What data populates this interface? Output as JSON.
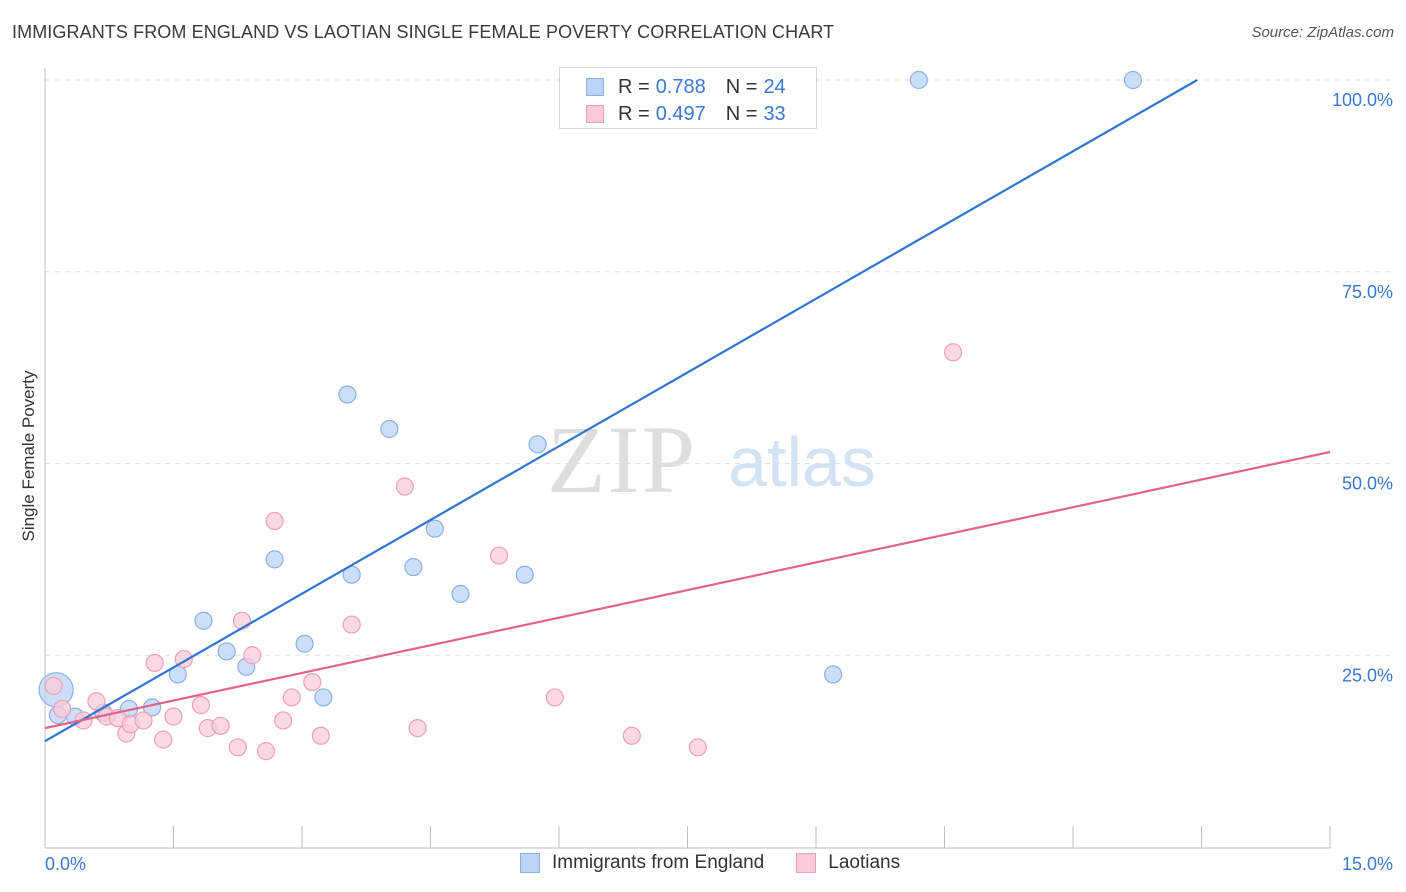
{
  "header": {
    "title": "IMMIGRANTS FROM ENGLAND VS LAOTIAN SINGLE FEMALE POVERTY CORRELATION CHART",
    "source": "Source: ZipAtlas.com"
  },
  "watermark": {
    "zip": "ZIP",
    "atlas": "atlas"
  },
  "legend": {
    "r_label": "R =",
    "n_label": "N =",
    "rows": [
      {
        "r": "0.788",
        "n": "24"
      },
      {
        "r": "0.497",
        "n": "33"
      }
    ]
  },
  "colors": {
    "blue_fill": "#bcd4f6",
    "blue_stroke": "#8ab0e6",
    "blue_line": "#2f74d0",
    "pink_fill": "#f9cbd8",
    "pink_stroke": "#ee9fb6",
    "pink_line": "#e3638a",
    "tick_label": "#3a78d6",
    "grid": "#e0e0e0"
  },
  "chart_data": {
    "type": "scatter",
    "title": "IMMIGRANTS FROM ENGLAND VS LAOTIAN SINGLE FEMALE POVERTY CORRELATION CHART",
    "xlabel": "",
    "ylabel": "Single Female Poverty",
    "xlim": [
      0,
      15
    ],
    "ylim": [
      0,
      102
    ],
    "x_tick_labels": [
      {
        "value": 0,
        "label": "0.0%"
      },
      {
        "value": 15,
        "label": "15.0%"
      }
    ],
    "y_tick_labels": [
      {
        "value": 25,
        "label": "25.0%"
      },
      {
        "value": 50,
        "label": "50.0%"
      },
      {
        "value": 75,
        "label": "75.0%"
      },
      {
        "value": 100,
        "label": "100.0%"
      }
    ],
    "x_minor_ticks": [
      0,
      1.5,
      3,
      4.5,
      6,
      7.5,
      9,
      10.5,
      12,
      13.5,
      15
    ],
    "grid": true,
    "legend_position": "top-center",
    "series": [
      {
        "name": "Immigrants from England",
        "color": "#bcd4f6",
        "r": 0.788,
        "n": 24,
        "trend": {
          "x": [
            0,
            13.45
          ],
          "y": [
            13.8,
            100
          ]
        },
        "points": [
          {
            "x": 0.13,
            "y": 20.5,
            "big": true
          },
          {
            "x": 0.35,
            "y": 17.0
          },
          {
            "x": 0.68,
            "y": 17.5
          },
          {
            "x": 0.98,
            "y": 18.0
          },
          {
            "x": 1.25,
            "y": 18.2
          },
          {
            "x": 1.55,
            "y": 22.5
          },
          {
            "x": 1.85,
            "y": 29.5
          },
          {
            "x": 2.12,
            "y": 25.5
          },
          {
            "x": 2.35,
            "y": 23.5
          },
          {
            "x": 2.68,
            "y": 37.5
          },
          {
            "x": 3.03,
            "y": 26.5
          },
          {
            "x": 3.25,
            "y": 19.5
          },
          {
            "x": 3.53,
            "y": 59.0
          },
          {
            "x": 3.58,
            "y": 35.5
          },
          {
            "x": 4.02,
            "y": 54.5
          },
          {
            "x": 4.3,
            "y": 36.5
          },
          {
            "x": 4.55,
            "y": 41.5
          },
          {
            "x": 4.85,
            "y": 33.0
          },
          {
            "x": 5.6,
            "y": 35.5
          },
          {
            "x": 5.75,
            "y": 52.5
          },
          {
            "x": 9.2,
            "y": 22.5
          },
          {
            "x": 10.2,
            "y": 100.0
          },
          {
            "x": 12.7,
            "y": 100.0
          },
          {
            "x": 0.15,
            "y": 17.2
          }
        ]
      },
      {
        "name": "Laotians",
        "color": "#f9cbd8",
        "r": 0.497,
        "n": 33,
        "trend": {
          "x": [
            0,
            15
          ],
          "y": [
            15.5,
            51.5
          ]
        },
        "points": [
          {
            "x": 0.1,
            "y": 21.0
          },
          {
            "x": 0.2,
            "y": 18.0
          },
          {
            "x": 0.45,
            "y": 16.5
          },
          {
            "x": 0.6,
            "y": 19.0
          },
          {
            "x": 0.72,
            "y": 17.0
          },
          {
            "x": 0.85,
            "y": 16.8
          },
          {
            "x": 0.95,
            "y": 14.8
          },
          {
            "x": 1.0,
            "y": 16.0
          },
          {
            "x": 1.15,
            "y": 16.5
          },
          {
            "x": 1.28,
            "y": 24.0
          },
          {
            "x": 1.38,
            "y": 14.0
          },
          {
            "x": 1.5,
            "y": 17.0
          },
          {
            "x": 1.62,
            "y": 24.5
          },
          {
            "x": 1.82,
            "y": 18.5
          },
          {
            "x": 1.9,
            "y": 15.5
          },
          {
            "x": 2.05,
            "y": 15.8
          },
          {
            "x": 2.25,
            "y": 13.0
          },
          {
            "x": 2.3,
            "y": 29.5
          },
          {
            "x": 2.42,
            "y": 25.0
          },
          {
            "x": 2.58,
            "y": 12.5
          },
          {
            "x": 2.68,
            "y": 42.5
          },
          {
            "x": 2.78,
            "y": 16.5
          },
          {
            "x": 2.88,
            "y": 19.5
          },
          {
            "x": 3.12,
            "y": 21.5
          },
          {
            "x": 3.22,
            "y": 14.5
          },
          {
            "x": 3.58,
            "y": 29.0
          },
          {
            "x": 4.2,
            "y": 47.0
          },
          {
            "x": 4.35,
            "y": 15.5
          },
          {
            "x": 5.3,
            "y": 38.0
          },
          {
            "x": 5.95,
            "y": 19.5
          },
          {
            "x": 6.85,
            "y": 14.5
          },
          {
            "x": 7.62,
            "y": 13.0
          },
          {
            "x": 10.6,
            "y": 64.5
          }
        ]
      }
    ]
  },
  "bottom_legend": {
    "items": [
      "Immigrants from England",
      "Laotians"
    ]
  }
}
